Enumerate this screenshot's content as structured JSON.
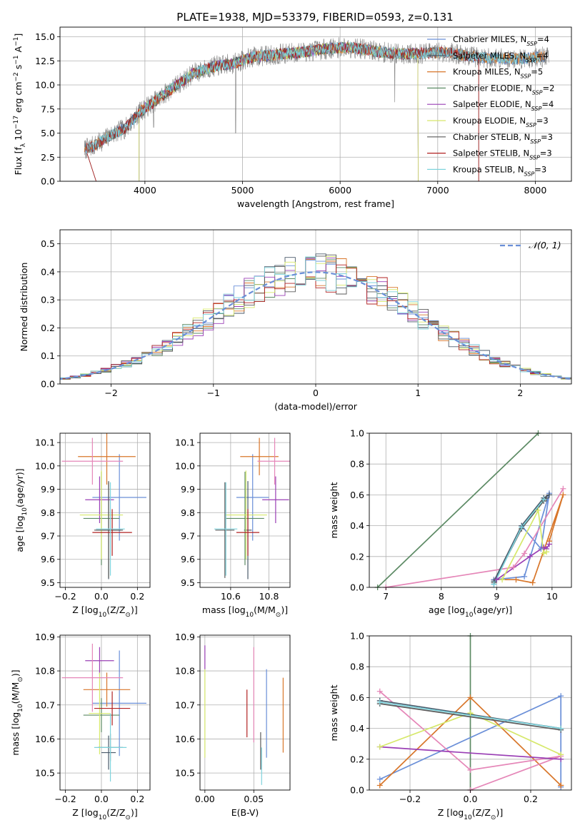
{
  "figure": {
    "title": "PLATE=1938, MJD=53379, FIBERID=0593, z=0.131"
  },
  "model_names": [
    "Chabrier MILES",
    "Salpeter MILES",
    "Kroupa MILES",
    "Chabrier ELODIE",
    "Salpeter ELODIE",
    "Kroupa ELODIE",
    "Chabrier STELIB",
    "Salpeter STELIB",
    "Kroupa STELIB"
  ],
  "model_nssp": [
    4,
    4,
    5,
    2,
    4,
    3,
    3,
    3,
    3
  ],
  "colors": {
    "Chabrier MILES": "#6a8fd8",
    "Salpeter MILES": "#4a5a6a",
    "Kroupa MILES": "#d8762a",
    "Chabrier ELODIE": "#5c8a64",
    "Salpeter ELODIE": "#9a3fb5",
    "Kroupa ELODIE": "#d6e86a",
    "Chabrier STELIB": "#5a5a5a",
    "Salpeter STELIB": "#b22222",
    "Kroupa STELIB": "#7fd3dc",
    "pink": "#e586b8",
    "gaussian": "#6a8fd8",
    "grid": "#b0b0b0",
    "data": "#808080"
  },
  "chart_data": [
    {
      "id": "spectrum",
      "type": "line",
      "xlabel": "wavelength [Angstrom, rest frame]",
      "ylabel": "Flux [f_λ 10^-17 erg cm^-2 s^-1 A^-1]",
      "xlim": [
        3130,
        8370
      ],
      "ylim": [
        0,
        16
      ],
      "xticks": [
        4000,
        5000,
        6000,
        7000,
        8000
      ],
      "yticks": [
        0.0,
        2.5,
        5.0,
        7.5,
        10.0,
        12.5,
        15.0
      ],
      "continuum_knots": [
        [
          3380,
          3.3
        ],
        [
          3500,
          3.8
        ],
        [
          3650,
          4.8
        ],
        [
          3800,
          5.5
        ],
        [
          3950,
          7.2
        ],
        [
          4100,
          8.3
        ],
        [
          4300,
          9.8
        ],
        [
          4500,
          11.2
        ],
        [
          4700,
          11.9
        ],
        [
          4900,
          12.2
        ],
        [
          5100,
          12.9
        ],
        [
          5300,
          13.1
        ],
        [
          5500,
          13.3
        ],
        [
          5700,
          13.5
        ],
        [
          5900,
          13.8
        ],
        [
          6100,
          13.9
        ],
        [
          6300,
          13.6
        ],
        [
          6500,
          13.3
        ],
        [
          6700,
          13.2
        ],
        [
          6900,
          13.3
        ],
        [
          7100,
          13.4
        ],
        [
          7300,
          13.0
        ],
        [
          7500,
          12.8
        ],
        [
          7800,
          12.7
        ],
        [
          8100,
          12.9
        ]
      ],
      "model_ranges": [
        [
          3380,
          8100
        ],
        [
          3380,
          8100
        ],
        [
          3380,
          8100
        ],
        [
          3940,
          6800
        ],
        [
          3940,
          6800
        ],
        [
          3940,
          6800
        ],
        [
          3400,
          7420
        ],
        [
          3400,
          7420
        ],
        [
          3400,
          8050
        ]
      ],
      "legend_loc": "upper right"
    },
    {
      "id": "residual_histogram",
      "type": "histogram",
      "xlabel": "(data-model)/error",
      "ylabel": "Normed distribution",
      "xlim": [
        -2.5,
        2.5
      ],
      "ylim": [
        0,
        0.55
      ],
      "xticks": [
        -2,
        -1,
        0,
        1,
        2
      ],
      "yticks": [
        0.0,
        0.1,
        0.2,
        0.3,
        0.4,
        0.5
      ],
      "bin_width": 0.1,
      "gaussian_label": "𝒩(0, 1)",
      "legend_loc": "upper right"
    },
    {
      "id": "age_vs_Z",
      "type": "errorbar",
      "xlabel": "Z [log10(Z/Z⊙)]",
      "ylabel": "age [log10(age/yr)]",
      "xlim": [
        -0.23,
        0.27
      ],
      "ylim": [
        9.48,
        10.14
      ],
      "xticks": [
        -0.2,
        0.0,
        0.2
      ],
      "yticks": [
        9.5,
        9.6,
        9.7,
        9.8,
        9.9,
        10.0,
        10.1
      ],
      "points": [
        {
          "c": "Chabrier MILES",
          "x": 0.1,
          "xerr": 0.15,
          "y": 9.865,
          "yerr": 0.185
        },
        {
          "c": "Salpeter MILES",
          "x": 0.04,
          "xerr": 0.07,
          "y": 9.725,
          "yerr": 0.21
        },
        {
          "c": "Kroupa MILES",
          "x": 0.03,
          "xerr": 0.16,
          "y": 10.04,
          "yerr": 0.12
        },
        {
          "c": "Chabrier ELODIE",
          "x": 0.0,
          "xerr": 0.1,
          "y": 9.775,
          "yerr": 0.2
        },
        {
          "c": "Salpeter ELODIE",
          "x": -0.01,
          "xerr": 0.08,
          "y": 9.855,
          "yerr": 0.1
        },
        {
          "c": "Kroupa ELODIE",
          "x": 0.0,
          "xerr": 0.12,
          "y": 9.79,
          "yerr": 0.19
        },
        {
          "c": "Chabrier STELIB",
          "x": 0.04,
          "xerr": 0.08,
          "y": 9.725,
          "yerr": 0.205
        },
        {
          "c": "Salpeter STELIB",
          "x": 0.06,
          "xerr": 0.11,
          "y": 9.715,
          "yerr": 0.1
        },
        {
          "c": "Kroupa STELIB",
          "x": 0.05,
          "xerr": 0.08,
          "y": 9.73,
          "yerr": 0.2
        },
        {
          "c": "pink",
          "x": -0.05,
          "xerr": 0.17,
          "y": 10.02,
          "yerr": 0.1
        }
      ]
    },
    {
      "id": "age_vs_mass",
      "type": "errorbar",
      "xlabel": "mass [log10(M/M⊙)]",
      "ylabel": "",
      "xlim": [
        10.44,
        10.91
      ],
      "ylim": [
        9.48,
        10.14
      ],
      "xticks": [
        10.6,
        10.8
      ],
      "yticks": [
        9.5,
        9.6,
        9.7,
        9.8,
        9.9,
        10.0,
        10.1
      ],
      "points": [
        {
          "c": "Chabrier MILES",
          "x": 10.715,
          "xerr": 0.085,
          "y": 9.865,
          "yerr": 0.185
        },
        {
          "c": "Salpeter MILES",
          "x": 10.69,
          "xerr": 0.02,
          "y": 9.725,
          "yerr": 0.21
        },
        {
          "c": "Kroupa MILES",
          "x": 10.75,
          "xerr": 0.1,
          "y": 10.04,
          "yerr": 0.08
        },
        {
          "c": "Chabrier ELODIE",
          "x": 10.675,
          "xerr": 0.1,
          "y": 9.775,
          "yerr": 0.2
        },
        {
          "c": "Salpeter ELODIE",
          "x": 10.835,
          "xerr": 0.07,
          "y": 9.855,
          "yerr": 0.1
        },
        {
          "c": "Kroupa ELODIE",
          "x": 10.68,
          "xerr": 0.11,
          "y": 9.79,
          "yerr": 0.19
        },
        {
          "c": "Chabrier STELIB",
          "x": 10.57,
          "xerr": 0.05,
          "y": 9.725,
          "yerr": 0.205
        },
        {
          "c": "Salpeter STELIB",
          "x": 10.69,
          "xerr": 0.06,
          "y": 9.715,
          "yerr": 0.1
        },
        {
          "c": "Kroupa STELIB",
          "x": 10.575,
          "xerr": 0.06,
          "y": 9.73,
          "yerr": 0.2
        },
        {
          "c": "pink",
          "x": 10.83,
          "xerr": 0.09,
          "y": 10.02,
          "yerr": 0.1
        }
      ]
    },
    {
      "id": "weight_vs_age",
      "type": "line",
      "xlabel": "age [log10(age/yr)]",
      "ylabel": "mass weight",
      "xlim": [
        6.7,
        10.35
      ],
      "ylim": [
        0,
        1
      ],
      "xticks": [
        7,
        8,
        9,
        10
      ],
      "yticks": [
        0.0,
        0.2,
        0.4,
        0.6,
        0.8,
        1.0
      ],
      "series": [
        {
          "c": "Chabrier ELODIE",
          "x": [
            6.85,
            9.75
          ],
          "y": [
            0.0,
            1.0
          ]
        },
        {
          "c": "Kroupa MILES",
          "x": [
            8.95,
            9.35,
            9.65,
            10.2,
            9.95
          ],
          "y": [
            0.05,
            0.05,
            0.03,
            0.6,
            0.3
          ]
        },
        {
          "c": "Chabrier MILES",
          "x": [
            8.95,
            9.5,
            9.95,
            9.8,
            9.45,
            8.95
          ],
          "y": [
            0.05,
            0.07,
            0.61,
            0.25,
            0.4,
            0.02
          ]
        },
        {
          "c": "pink",
          "x": [
            7.0,
            9.3,
            9.5,
            10.2
          ],
          "y": [
            0.0,
            0.13,
            0.22,
            0.64
          ]
        },
        {
          "c": "Salpeter ELODIE",
          "x": [
            9.0,
            9.6,
            9.85,
            9.9,
            9.95
          ],
          "y": [
            0.05,
            0.2,
            0.26,
            0.25,
            0.28
          ]
        },
        {
          "c": "Kroupa ELODIE",
          "x": [
            9.1,
            9.75,
            9.85,
            9.9
          ],
          "y": [
            0.05,
            0.5,
            0.22,
            0.23
          ]
        },
        {
          "c": "Chabrier STELIB",
          "x": [
            8.95,
            9.45,
            9.85,
            9.9
          ],
          "y": [
            0.03,
            0.38,
            0.56,
            0.58
          ]
        },
        {
          "c": "Salpeter MILES",
          "x": [
            8.95,
            9.45,
            9.85,
            9.95
          ],
          "y": [
            0.04,
            0.4,
            0.58,
            0.6
          ]
        },
        {
          "c": "Kroupa STELIB",
          "x": [
            8.95,
            9.45,
            9.85
          ],
          "y": [
            0.02,
            0.39,
            0.57
          ]
        }
      ]
    },
    {
      "id": "mass_vs_Z",
      "type": "errorbar",
      "xlabel": "Z [log10(Z/Z⊙)]",
      "ylabel": "mass [log10(M/M⊙)]",
      "xlim": [
        -0.23,
        0.27
      ],
      "ylim": [
        10.45,
        10.905
      ],
      "xticks": [
        -0.2,
        0.0,
        0.2
      ],
      "yticks": [
        10.5,
        10.6,
        10.7,
        10.8,
        10.9
      ],
      "points": [
        {
          "c": "Chabrier MILES",
          "x": 0.1,
          "xerr": 0.15,
          "y": 10.705,
          "yerr": 0.155
        },
        {
          "c": "Salpeter MILES",
          "x": 0.04,
          "xerr": 0.04,
          "y": 10.56,
          "yerr": 0.05
        },
        {
          "c": "Kroupa MILES",
          "x": 0.03,
          "xerr": 0.13,
          "y": 10.745,
          "yerr": 0.05
        },
        {
          "c": "Chabrier ELODIE",
          "x": 0.0,
          "xerr": 0.1,
          "y": 10.67,
          "yerr": 0.05
        },
        {
          "c": "Salpeter ELODIE",
          "x": -0.01,
          "xerr": 0.08,
          "y": 10.83,
          "yerr": 0.04
        },
        {
          "c": "Kroupa ELODIE",
          "x": -0.01,
          "xerr": 0.06,
          "y": 10.675,
          "yerr": 0.12
        },
        {
          "c": "Chabrier STELIB",
          "x": 0.05,
          "xerr": 0.07,
          "y": 10.575,
          "yerr": 0.04
        },
        {
          "c": "Salpeter STELIB",
          "x": 0.06,
          "xerr": 0.1,
          "y": 10.69,
          "yerr": 0.05
        },
        {
          "c": "Kroupa STELIB",
          "x": 0.05,
          "xerr": 0.09,
          "y": 10.575,
          "yerr": 0.1
        },
        {
          "c": "pink",
          "x": -0.05,
          "xerr": 0.17,
          "y": 10.78,
          "yerr": 0.1
        }
      ]
    },
    {
      "id": "mass_vs_ebv",
      "type": "errorbar",
      "xlabel": "E(B-V)",
      "ylabel": "",
      "xlim": [
        -0.005,
        0.087
      ],
      "ylim": [
        10.45,
        10.905
      ],
      "xticks": [
        0.0,
        0.05
      ],
      "yticks": [
        10.5,
        10.6,
        10.7,
        10.8,
        10.9
      ],
      "points": [
        {
          "c": "Kroupa ELODIE",
          "x": 0.0,
          "y": 10.675,
          "yerr": 0.13
        },
        {
          "c": "Salpeter ELODIE",
          "x": 0.0,
          "y": 10.84,
          "yerr": 0.035
        },
        {
          "c": "Salpeter STELIB",
          "x": 0.043,
          "y": 10.675,
          "yerr": 0.07
        },
        {
          "c": "pink",
          "x": 0.05,
          "y": 10.73,
          "yerr": 0.14
        },
        {
          "c": "Chabrier STELIB",
          "x": 0.057,
          "y": 10.565,
          "yerr": 0.055
        },
        {
          "c": "Kroupa STELIB",
          "x": 0.058,
          "y": 10.52,
          "yerr": 0.055
        },
        {
          "c": "Chabrier MILES",
          "x": 0.063,
          "y": 10.675,
          "yerr": 0.13
        },
        {
          "c": "Kroupa MILES",
          "x": 0.08,
          "y": 10.67,
          "yerr": 0.11
        }
      ]
    },
    {
      "id": "weight_vs_Z",
      "type": "line",
      "xlabel": "Z [log10(Z/Z⊙)]",
      "ylabel": "mass weight",
      "xlim": [
        -0.335,
        0.335
      ],
      "ylim": [
        0,
        1
      ],
      "xticks": [
        -0.2,
        0.0,
        0.2
      ],
      "yticks": [
        0.0,
        0.2,
        0.4,
        0.6,
        0.8,
        1.0
      ],
      "series": [
        {
          "c": "Chabrier ELODIE",
          "x": [
            0.0,
            0.0
          ],
          "y": [
            0.0,
            1.0
          ]
        },
        {
          "c": "Chabrier MILES",
          "x": [
            -0.3,
            0.3,
            0.3
          ],
          "y": [
            0.07,
            0.61,
            0.02
          ]
        },
        {
          "c": "Kroupa MILES",
          "x": [
            -0.3,
            0.0,
            0.3,
            0.3
          ],
          "y": [
            0.03,
            0.6,
            0.03,
            0.03
          ]
        },
        {
          "c": "pink",
          "x": [
            -0.3,
            0.0,
            0.3,
            0.0
          ],
          "y": [
            0.64,
            0.13,
            0.22,
            0.0
          ]
        },
        {
          "c": "Salpeter ELODIE",
          "x": [
            -0.3,
            0.3
          ],
          "y": [
            0.28,
            0.2
          ]
        },
        {
          "c": "Kroupa ELODIE",
          "x": [
            -0.3,
            0.0,
            0.3
          ],
          "y": [
            0.28,
            0.5,
            0.23
          ]
        },
        {
          "c": "Chabrier STELIB",
          "x": [
            -0.3,
            0.3
          ],
          "y": [
            0.56,
            0.39
          ]
        },
        {
          "c": "Salpeter MILES",
          "x": [
            -0.3,
            0.3
          ],
          "y": [
            0.58,
            0.4
          ]
        },
        {
          "c": "Kroupa STELIB",
          "x": [
            -0.3,
            0.3
          ],
          "y": [
            0.57,
            0.4
          ]
        }
      ]
    }
  ]
}
